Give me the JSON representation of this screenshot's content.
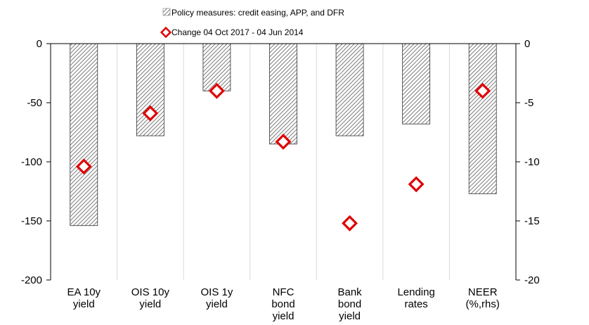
{
  "chart_data": {
    "type": "bar",
    "categories": [
      [
        "EA 10y",
        "yield"
      ],
      [
        "OIS 10y",
        "yield"
      ],
      [
        "OIS 1y",
        "yield"
      ],
      [
        "NFC",
        "bond",
        "yield"
      ],
      [
        "Bank",
        "bond",
        "yield"
      ],
      [
        "Lending",
        "rates"
      ],
      [
        "NEER",
        "(%,rhs)"
      ]
    ],
    "series": [
      {
        "name": "Policy measures: credit easing, APP, and DFR",
        "type": "bar",
        "values": [
          -154,
          -78,
          -40,
          -85,
          -78,
          -68,
          -12.7
        ],
        "axis": [
          "left",
          "left",
          "left",
          "left",
          "left",
          "left",
          "right"
        ]
      },
      {
        "name": "Change 04 Oct 2017 - 04 Jun 2014",
        "type": "scatter",
        "values": [
          -104,
          -59,
          -40,
          -83,
          -152,
          -119,
          -4
        ],
        "axis": [
          "left",
          "left",
          "left",
          "left",
          "left",
          "left",
          "right"
        ]
      }
    ],
    "ylim": [
      -200,
      0
    ],
    "y2lim": [
      -20,
      0
    ],
    "yticks": [
      0,
      -50,
      -100,
      -150,
      -200
    ],
    "y2ticks": [
      0,
      -5,
      -10,
      -15,
      -20
    ],
    "legend_position": "top-center",
    "colors": {
      "bar_hatch": "#808080",
      "bar_edge": "#333333",
      "marker": "#e00000"
    }
  }
}
